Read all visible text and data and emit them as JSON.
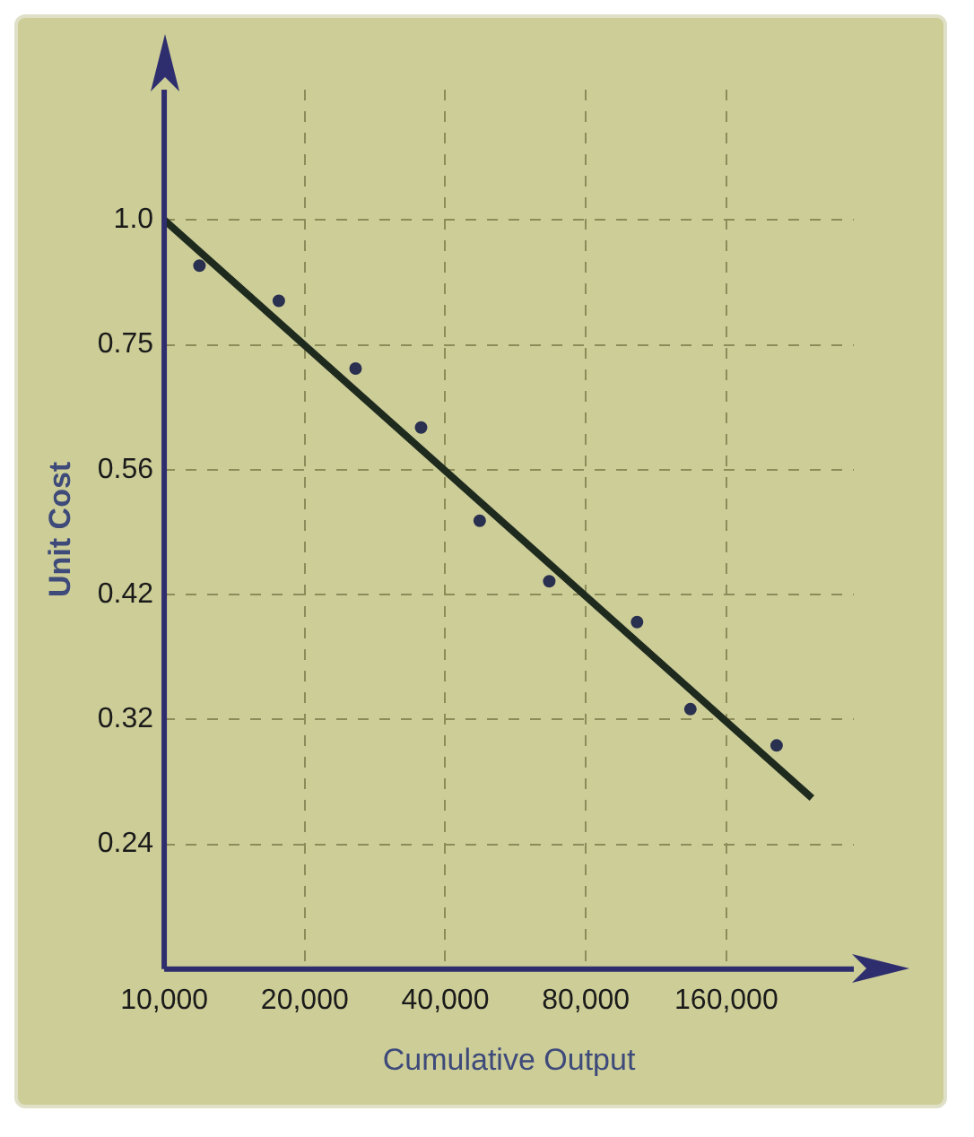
{
  "chart_data": {
    "type": "scatter",
    "xlabel": "Cumulative Output",
    "ylabel": "Unit Cost",
    "log": "xy",
    "grid": true,
    "marker": "circle",
    "line_style": "solid",
    "xlim": [
      10000,
      300000
    ],
    "ylim": [
      0.178,
      1.35
    ],
    "xticks": [
      {
        "value": 10000,
        "label": "10,000"
      },
      {
        "value": 20000,
        "label": "20,000"
      },
      {
        "value": 40000,
        "label": "40,000"
      },
      {
        "value": 80000,
        "label": "80,000"
      },
      {
        "value": 160000,
        "label": "160,000"
      }
    ],
    "yticks": [
      {
        "value": 1.0,
        "label": "1.0"
      },
      {
        "value": 0.75,
        "label": "0.75"
      },
      {
        "value": 0.5625,
        "label": "0.56"
      },
      {
        "value": 0.4219,
        "label": "0.42"
      },
      {
        "value": 0.3164,
        "label": "0.32"
      },
      {
        "value": 0.2373,
        "label": "0.24"
      }
    ],
    "series": [
      {
        "color": "#2a3050",
        "x": [
          11900,
          17600,
          25700,
          35500,
          47400,
          66800,
          103000,
          134000,
          205000
        ],
        "values": [
          0.9,
          0.83,
          0.71,
          0.62,
          0.5,
          0.435,
          0.396,
          0.324,
          0.298
        ]
      },
      {
        "type": "line",
        "marker": "none",
        "color": "#1e2a1e",
        "x": [
          10000,
          244000
        ],
        "values": [
          1.0,
          0.264
        ]
      }
    ]
  }
}
